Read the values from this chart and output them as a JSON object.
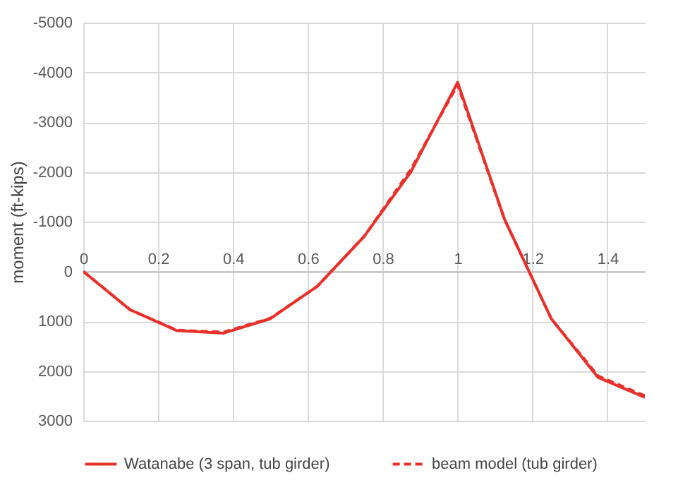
{
  "chart_data": {
    "type": "line",
    "ylabel": "moment (ft-kips)",
    "x": [
      0,
      0.125,
      0.25,
      0.375,
      0.5,
      0.625,
      0.75,
      0.875,
      1,
      1.125,
      1.25,
      1.375,
      1.5
    ],
    "series": [
      {
        "name": "Watanabe (3 span, tub girder)",
        "color": "#e8312a",
        "line_style": "solid",
        "values": [
          0,
          770,
          1190,
          1240,
          950,
          300,
          -700,
          -2000,
          -3800,
          -1050,
          950,
          2130,
          2530
        ]
      },
      {
        "name": "beam model (tub girder)",
        "color": "#e8312a",
        "line_style": "dashed",
        "values": [
          0,
          770,
          1180,
          1220,
          940,
          300,
          -700,
          -2050,
          -3750,
          -1050,
          950,
          2100,
          2500
        ]
      }
    ],
    "xlim": [
      0,
      1.5
    ],
    "xticks": [
      0,
      0.2,
      0.4,
      0.6,
      0.8,
      1,
      1.2,
      1.4
    ],
    "ylim": [
      3000,
      -5000
    ],
    "yticks": [
      -5000,
      -4000,
      -3000,
      -2000,
      -1000,
      0,
      1000,
      2000,
      3000
    ],
    "grid": true,
    "legend": "bottom",
    "marker": "none"
  }
}
